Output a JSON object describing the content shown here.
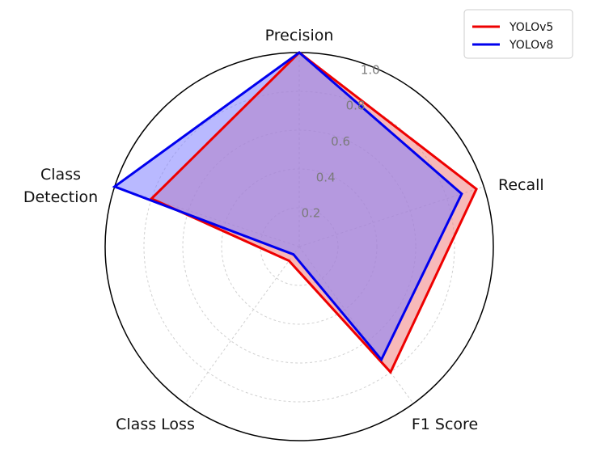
{
  "chart_data": {
    "type": "radar",
    "categories": [
      "Precision",
      "Recall",
      "F1 Score",
      "Class Loss",
      "Class Detection"
    ],
    "series": [
      {
        "name": "YOLOv5",
        "values": [
          1.0,
          0.96,
          0.8,
          0.09,
          0.8
        ],
        "line_color": "#ee0000",
        "fill_color": "#f08080"
      },
      {
        "name": "YOLOv8",
        "values": [
          1.0,
          0.88,
          0.72,
          0.05,
          1.0
        ],
        "line_color": "#0000ee",
        "fill_color": "#8080ff"
      }
    ],
    "rlim": [
      0,
      1.0
    ],
    "radial_ticks": [
      "0.2",
      "0.4",
      "0.6",
      "0.8",
      "1.0"
    ],
    "grid": true,
    "legend": "top-right"
  }
}
